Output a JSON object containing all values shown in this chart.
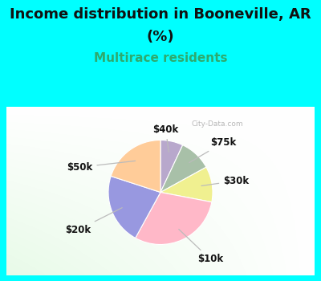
{
  "title_line1": "Income distribution in Booneville, AR",
  "title_line2": "(%)",
  "subtitle": "Multirace residents",
  "title_color": "#111111",
  "subtitle_color": "#2eaa6e",
  "bg_color": "#00ffff",
  "watermark": "City-Data.com",
  "slices": [
    {
      "label": "$40k",
      "value": 7,
      "color": "#b8a8cc"
    },
    {
      "label": "$75k",
      "value": 10,
      "color": "#a8c0a8"
    },
    {
      "label": "$30k",
      "value": 11,
      "color": "#f0f090"
    },
    {
      "label": "$10k",
      "value": 30,
      "color": "#ffb8c8"
    },
    {
      "label": "$20k",
      "value": 22,
      "color": "#9898e0"
    },
    {
      "label": "$50k",
      "value": 20,
      "color": "#ffcc99"
    }
  ],
  "startangle": 90,
  "label_fontsize": 8.5,
  "title_fontsize": 13,
  "subtitle_fontsize": 11
}
